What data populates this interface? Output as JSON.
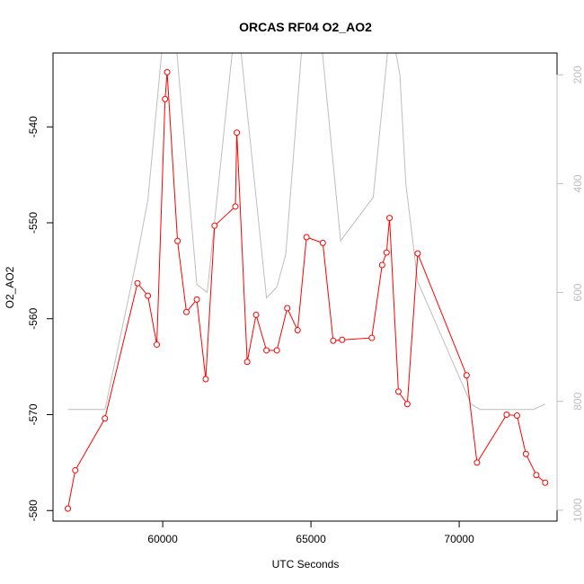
{
  "chart_data": {
    "type": "line",
    "title": "ORCAS RF04 O2_AO2",
    "xlabel": "UTC Seconds",
    "ylabel": "O2_AO2",
    "xlim": [
      56300,
      73300
    ],
    "ylim": [
      -581.1,
      -532.3
    ],
    "y2lim": [
      1020,
      160
    ],
    "x_ticks": [
      60000,
      65000,
      70000
    ],
    "y_ticks": [
      -540,
      -550,
      -560,
      -570,
      -580
    ],
    "y2_ticks": [
      200,
      400,
      600,
      800,
      1000
    ],
    "colors": {
      "primary": "#ff0000",
      "secondary": "#bebebe",
      "axis": "#000000"
    },
    "series": [
      {
        "axis": "left",
        "style": "line-points",
        "points": [
          [
            56800,
            -579.8
          ],
          [
            57050,
            -575.8
          ],
          [
            58050,
            -570.4
          ],
          [
            59150,
            -556.3
          ],
          [
            59500,
            -557.6
          ],
          [
            59800,
            -562.7
          ],
          [
            60080,
            -537.1
          ],
          [
            60150,
            -534.3
          ],
          [
            60500,
            -551.9
          ],
          [
            60800,
            -559.3
          ],
          [
            61150,
            -558.0
          ],
          [
            61450,
            -566.3
          ],
          [
            61750,
            -550.3
          ],
          [
            62450,
            -548.3
          ],
          [
            62500,
            -540.6
          ],
          [
            62850,
            -564.5
          ],
          [
            63150,
            -559.6
          ],
          [
            63500,
            -563.3
          ],
          [
            63850,
            -563.3
          ],
          [
            64200,
            -558.9
          ],
          [
            64550,
            -561.2
          ],
          [
            64850,
            -551.5
          ],
          [
            65400,
            -552.1
          ],
          [
            65750,
            -562.3
          ],
          [
            66050,
            -562.2
          ],
          [
            67050,
            -562.0
          ],
          [
            67400,
            -554.4
          ],
          [
            67550,
            -553.1
          ],
          [
            67650,
            -549.5
          ],
          [
            67950,
            -567.6
          ],
          [
            68250,
            -568.9
          ],
          [
            68600,
            -553.2
          ],
          [
            70250,
            -565.9
          ],
          [
            70600,
            -575.0
          ],
          [
            71600,
            -570.0
          ],
          [
            71950,
            -570.1
          ],
          [
            72250,
            -574.1
          ],
          [
            72600,
            -576.3
          ],
          [
            72900,
            -577.1
          ]
        ]
      },
      {
        "axis": "right",
        "style": "line",
        "points": [
          [
            56800,
            815
          ],
          [
            58050,
            815
          ],
          [
            59100,
            545
          ],
          [
            59500,
            430
          ],
          [
            60050,
            110
          ],
          [
            60400,
            110
          ],
          [
            61150,
            585
          ],
          [
            61500,
            600
          ],
          [
            62400,
            130
          ],
          [
            62550,
            110
          ],
          [
            63500,
            610
          ],
          [
            63850,
            590
          ],
          [
            64150,
            530
          ],
          [
            64750,
            110
          ],
          [
            65300,
            110
          ],
          [
            66000,
            505
          ],
          [
            67100,
            425
          ],
          [
            67600,
            150
          ],
          [
            67700,
            110
          ],
          [
            68000,
            200
          ],
          [
            68200,
            400
          ],
          [
            68600,
            580
          ],
          [
            70400,
            805
          ],
          [
            70700,
            815
          ],
          [
            72500,
            815
          ],
          [
            72900,
            805
          ]
        ]
      }
    ]
  }
}
